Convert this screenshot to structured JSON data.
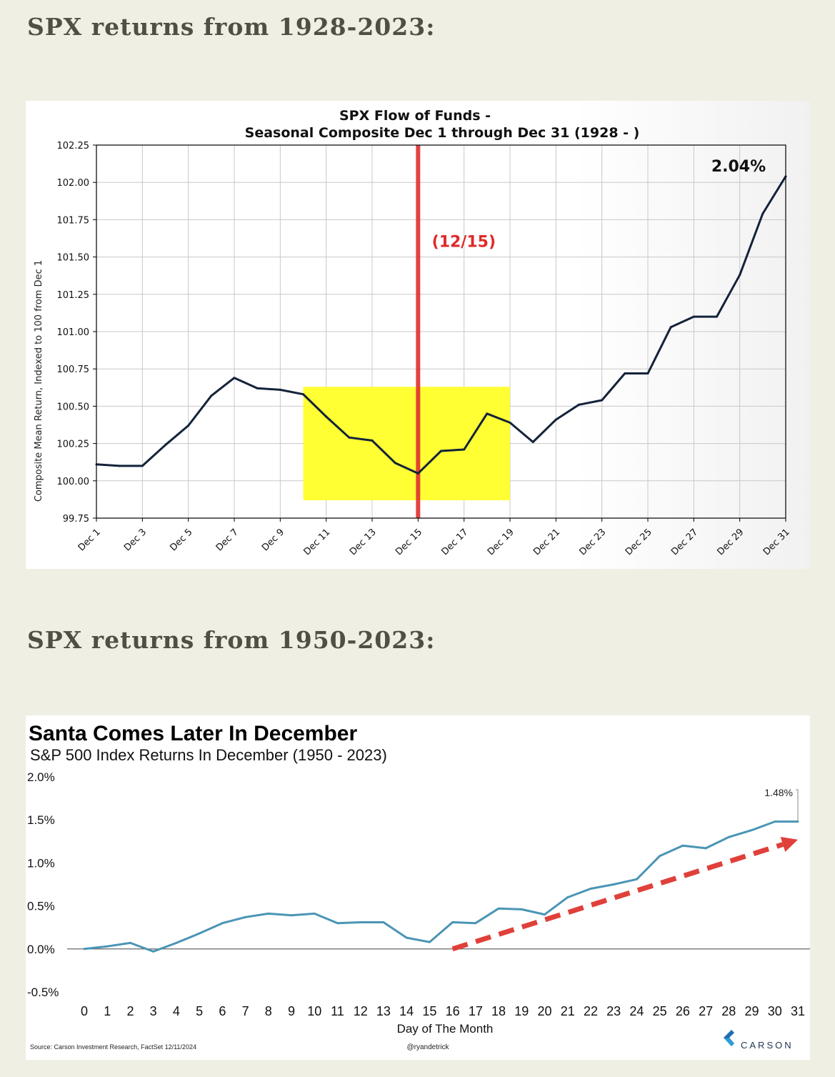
{
  "headings": {
    "first": "SPX returns from 1928-2023:",
    "second": "SPX returns from 1950-2023:"
  },
  "chart_data": [
    {
      "type": "line",
      "title_line1": "SPX Flow of Funds -",
      "title_line2": "Seasonal Composite Dec 1 through Dec 31 (1928 - )",
      "ylabel": "Composite Mean Return, Indexed to 100 from Dec 1",
      "xlabel": "",
      "ylim": [
        99.75,
        102.25
      ],
      "yticks": [
        "102.25",
        "102.00",
        "101.75",
        "101.50",
        "101.25",
        "101.00",
        "100.75",
        "100.50",
        "100.25",
        "100.00",
        "99.75"
      ],
      "ytick_values": [
        102.25,
        102.0,
        101.75,
        101.5,
        101.25,
        101.0,
        100.75,
        100.5,
        100.25,
        100.0,
        99.75
      ],
      "xticks": [
        "Dec 1",
        "Dec 3",
        "Dec 5",
        "Dec 7",
        "Dec 9",
        "Dec 11",
        "Dec 13",
        "Dec 15",
        "Dec 17",
        "Dec 19",
        "Dec 21",
        "Dec 23",
        "Dec 25",
        "Dec 27",
        "Dec 29",
        "Dec 31"
      ],
      "grid": true,
      "series": [
        {
          "name": "SPX composite",
          "color": "#13233a",
          "x": [
            1,
            2,
            3,
            4,
            5,
            6,
            7,
            8,
            9,
            10,
            11,
            12,
            13,
            14,
            15,
            16,
            17,
            18,
            19,
            20,
            21,
            22,
            23,
            24,
            25,
            26,
            27,
            28,
            29,
            30,
            31
          ],
          "values": [
            100.11,
            100.1,
            100.1,
            100.24,
            100.37,
            100.57,
            100.69,
            100.62,
            100.61,
            100.58,
            100.43,
            100.29,
            100.27,
            100.12,
            100.05,
            100.2,
            100.21,
            100.45,
            100.39,
            100.26,
            100.41,
            100.51,
            100.54,
            100.72,
            100.72,
            101.03,
            101.1,
            101.1,
            101.38,
            101.79,
            102.04
          ]
        }
      ],
      "highlight_box": {
        "x_from": 10,
        "x_to": 19,
        "y_from": 99.87,
        "y_to": 100.63,
        "color": "#ffff33"
      },
      "vertical_line": {
        "x": 15,
        "label": "(12/15)",
        "color": "#e03030"
      },
      "end_label": "2.04%"
    },
    {
      "type": "line",
      "title": "Santa Comes Later In December",
      "subtitle": "S&P 500 Index Returns In December (1950 - 2023)",
      "xlabel": "Day of The Month",
      "ylabel": "",
      "ylim": [
        -0.5,
        2.0
      ],
      "yticks": [
        "2.0%",
        "1.5%",
        "1.0%",
        "0.5%",
        "0.0%",
        "-0.5%"
      ],
      "ytick_values": [
        2.0,
        1.5,
        1.0,
        0.5,
        0.0,
        -0.5
      ],
      "xticks": [
        "0",
        "1",
        "2",
        "3",
        "4",
        "5",
        "6",
        "7",
        "8",
        "9",
        "10",
        "11",
        "12",
        "13",
        "14",
        "15",
        "16",
        "17",
        "18",
        "19",
        "20",
        "21",
        "22",
        "23",
        "24",
        "25",
        "26",
        "27",
        "28",
        "29",
        "30",
        "31"
      ],
      "series": [
        {
          "name": "S&P 500 December returns",
          "color": "#4a95b5",
          "x": [
            0,
            1,
            2,
            3,
            4,
            5,
            6,
            7,
            8,
            9,
            10,
            11,
            12,
            13,
            14,
            15,
            16,
            17,
            18,
            19,
            20,
            21,
            22,
            23,
            24,
            25,
            26,
            27,
            28,
            29,
            30,
            31
          ],
          "values": [
            0.0,
            0.03,
            0.07,
            -0.03,
            0.07,
            0.18,
            0.3,
            0.37,
            0.41,
            0.39,
            0.41,
            0.3,
            0.31,
            0.31,
            0.13,
            0.08,
            0.31,
            0.3,
            0.47,
            0.46,
            0.4,
            0.6,
            0.7,
            0.75,
            0.81,
            1.08,
            1.2,
            1.17,
            1.3,
            1.38,
            1.48,
            1.48
          ]
        }
      ],
      "trend_arrow": {
        "x_from": 16,
        "y_from": 0.0,
        "x_to": 31,
        "y_to": 1.27,
        "color": "#e0403a"
      },
      "end_label": "1.48%",
      "source": "Source: Carson Investment Research, FactSet 12/11/2024",
      "credit": "@ryandetrick",
      "brand": "CARSON",
      "brand_color": "#1d6fb0"
    }
  ]
}
